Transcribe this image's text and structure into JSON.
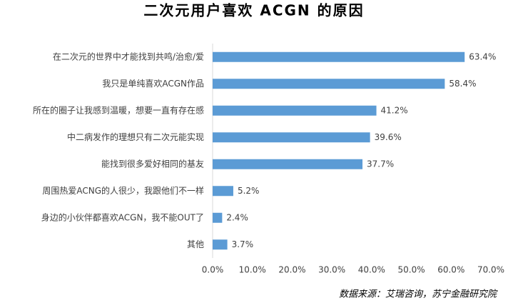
{
  "chart_data": {
    "type": "bar",
    "orientation": "horizontal",
    "title": "二次元用户喜欢 ACGN 的原因",
    "categories": [
      "在二次元的世界中才能找到共鸣/治愈/爱",
      "我只是单纯喜欢ACGN作品",
      "所在的圈子让我感到温暖，想要一直有存在感",
      "中二病发作的理想只有二次元能实现",
      "能找到很多爱好相同的基友",
      "周围热爱ACNG的人很少，我跟他们不一样",
      "身边的小伙伴都喜欢ACGN，我不能OUT了",
      "其他"
    ],
    "values": [
      63.4,
      58.4,
      41.2,
      39.6,
      37.7,
      5.2,
      2.4,
      3.7
    ],
    "value_labels": [
      "63.4%",
      "58.4%",
      "41.2%",
      "39.6%",
      "37.7%",
      "5.2%",
      "2.4%",
      "3.7%"
    ],
    "color": "#5b9bd5",
    "xlim": [
      0,
      70
    ],
    "xticks": [
      {
        "value": 0,
        "label": "0.0%"
      },
      {
        "value": 10,
        "label": "10.0%"
      },
      {
        "value": 20,
        "label": "20.0%"
      },
      {
        "value": 30,
        "label": "30.0%"
      },
      {
        "value": 40,
        "label": "40.0%"
      },
      {
        "value": 50,
        "label": "50.0%"
      },
      {
        "value": 60,
        "label": "60.0%"
      },
      {
        "value": 70,
        "label": "70.0%"
      }
    ],
    "grid": false,
    "source": "数据来源：艾瑞咨询，苏宁金融研究院"
  }
}
